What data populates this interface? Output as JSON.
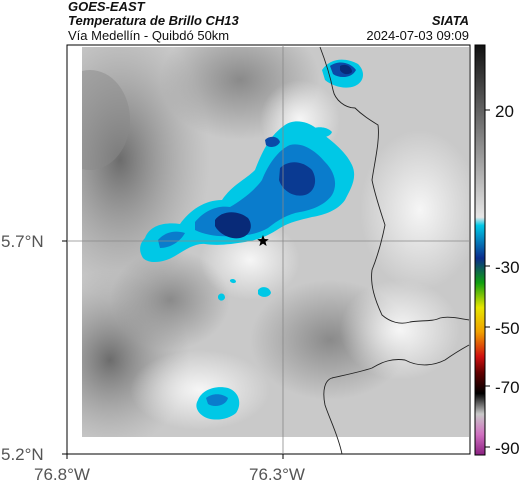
{
  "header": {
    "satellite": "GOES-EAST",
    "product": "Temperatura de Brillo CH13",
    "route": "Vía Medellín - Quibdó 50km",
    "org": "SIATA",
    "datetime": "2024-07-03 09:09"
  },
  "map": {
    "lat_ticks": [
      "5.7°N",
      "5.2°N"
    ],
    "lon_ticks": [
      "76.8°W",
      "76.3°W"
    ]
  },
  "colorbar": {
    "labels": [
      "20",
      "-30",
      "-50",
      "-70",
      "-90"
    ]
  },
  "colors": {
    "cold_cloud_cyan": "#00c8e6",
    "cold_cloud_blue": "#0a4aa8",
    "deep_cloud_navy": "#082a78"
  }
}
